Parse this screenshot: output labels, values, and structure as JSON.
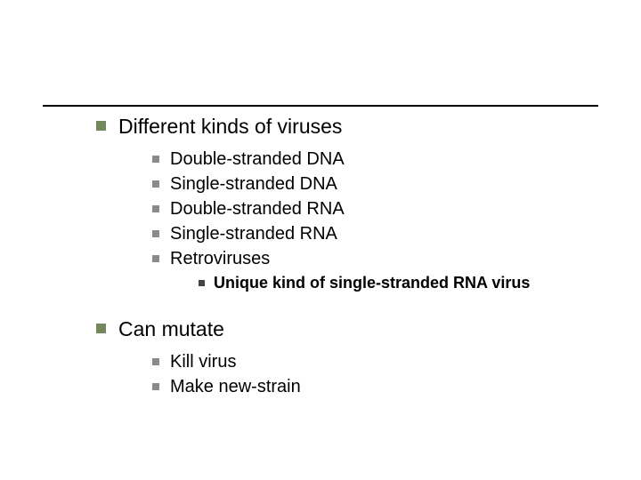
{
  "slide": {
    "rule_color": "#000000",
    "background": "#ffffff",
    "bullets": {
      "l1_color": "#74885b",
      "l2_color": "#8a8a8a",
      "l3_color": "#434343"
    },
    "items": [
      {
        "level": 1,
        "text": "Different kinds of viruses"
      },
      {
        "level": 2,
        "text": "Double-stranded DNA"
      },
      {
        "level": 2,
        "text": "Single-stranded DNA"
      },
      {
        "level": 2,
        "text": "Double-stranded RNA"
      },
      {
        "level": 2,
        "text": "Single-stranded RNA"
      },
      {
        "level": 2,
        "text": "Retroviruses"
      },
      {
        "level": 3,
        "text": "Unique kind of single-stranded RNA virus"
      },
      {
        "level": 0,
        "text": ""
      },
      {
        "level": 1,
        "text": "Can mutate"
      },
      {
        "level": 2,
        "text": "Kill virus"
      },
      {
        "level": 2,
        "text": "Make new-strain"
      }
    ]
  }
}
